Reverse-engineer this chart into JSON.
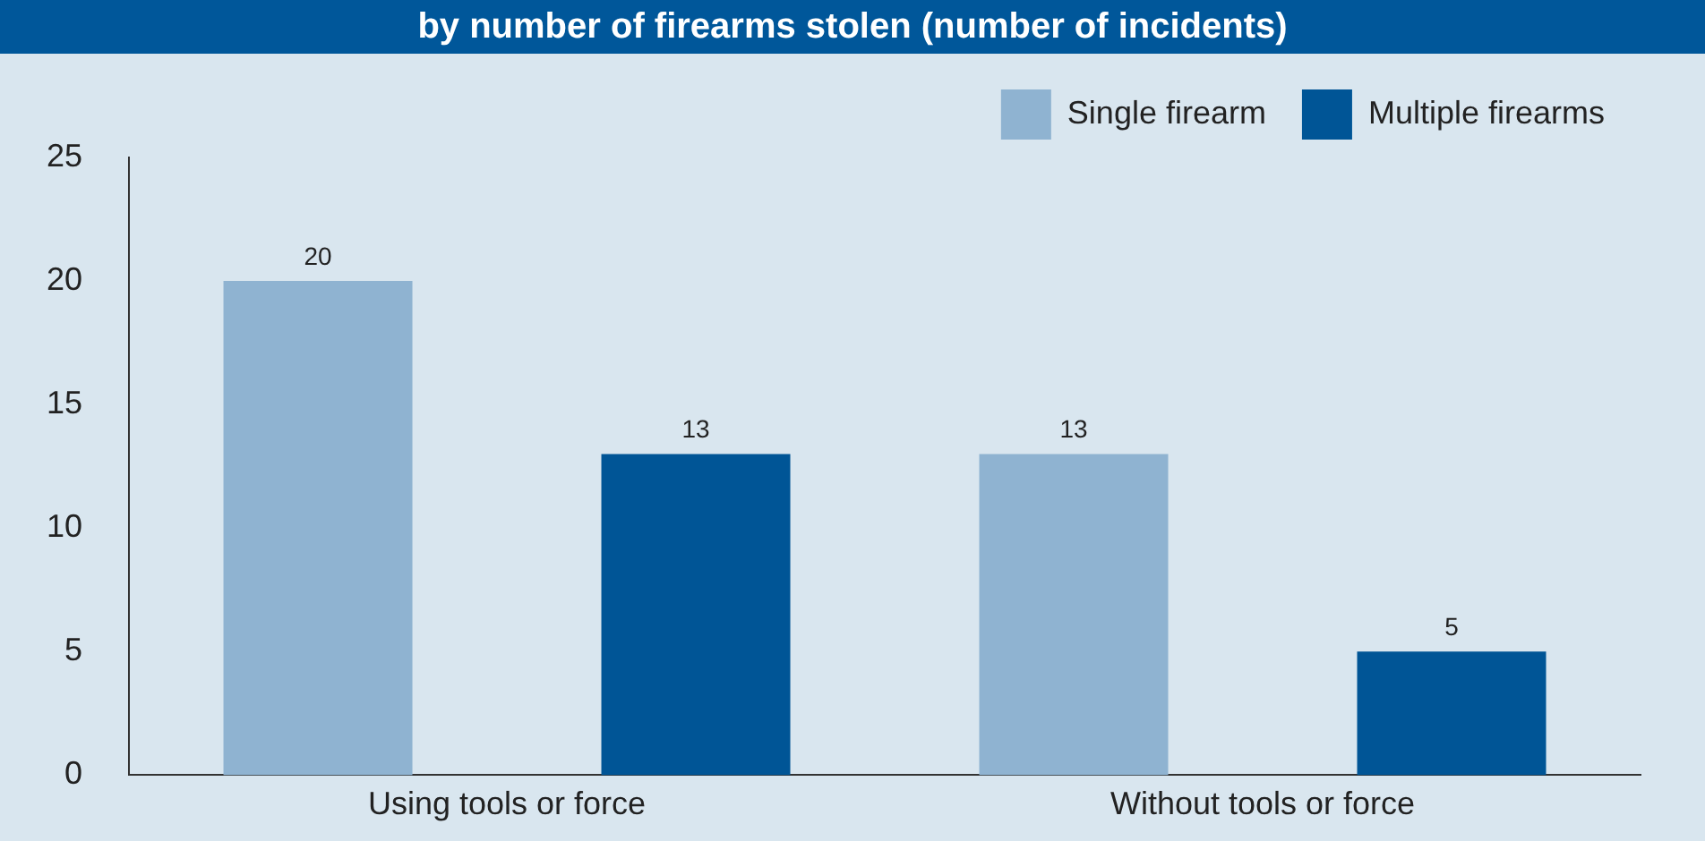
{
  "chart_data": {
    "type": "bar",
    "title": "by number of firearms stolen (number of incidents)",
    "categories": [
      "Using tools or force",
      "Without tools or force"
    ],
    "series": [
      {
        "name": "Single firearm",
        "color": "#8fb3d1",
        "values": [
          20,
          13
        ]
      },
      {
        "name": "Multiple firearms",
        "color": "#005596",
        "values": [
          13,
          5
        ]
      }
    ],
    "ylim": [
      0,
      25
    ],
    "yticks": [
      0,
      5,
      10,
      15,
      20,
      25
    ],
    "grid": false,
    "legend": "top right",
    "data_labels": true
  }
}
